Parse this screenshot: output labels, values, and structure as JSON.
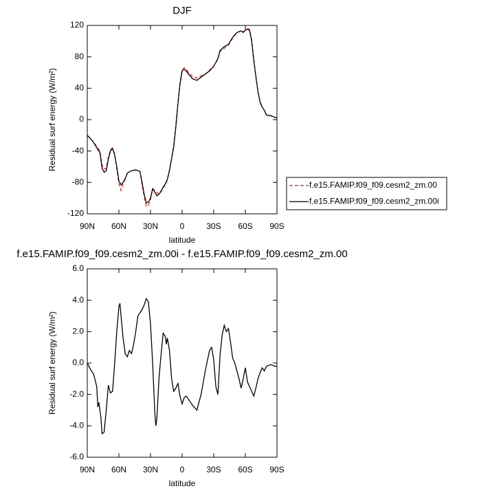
{
  "chart_data": [
    {
      "type": "line",
      "title": "DJF",
      "xlabel": "latitude",
      "ylabel": "Residual surf energy (W/m²)",
      "x": [
        90,
        85,
        80,
        78,
        76,
        74,
        72,
        70,
        68,
        66,
        64,
        62,
        60,
        58,
        56,
        54,
        52,
        48,
        44,
        40,
        38,
        36,
        34,
        32,
        30,
        28,
        26,
        24,
        22,
        20,
        18,
        16,
        14,
        12,
        10,
        8,
        6,
        4,
        2,
        0,
        -2,
        -4,
        -6,
        -10,
        -14,
        -18,
        -22,
        -26,
        -30,
        -34,
        -36,
        -40,
        -44,
        -48,
        -52,
        -56,
        -58,
        -60,
        -62,
        -64,
        -66,
        -68,
        -70,
        -72,
        -74,
        -76,
        -78,
        -80,
        -84,
        -88,
        -90
      ],
      "series": [
        {
          "name": "f.e15.FAMIP.f09_f09.cesm2_zm.00",
          "color": "#e41a1c",
          "dashed": true,
          "values": [
            -20,
            -27,
            -36,
            -40,
            -58,
            -63,
            -62,
            -48,
            -38,
            -36,
            -44,
            -62,
            -82,
            -90,
            -81,
            -76,
            -68,
            -65,
            -64,
            -66,
            -83,
            -98,
            -110,
            -109,
            -102,
            -88,
            -90,
            -93,
            -95,
            -92,
            -87,
            -83,
            -77,
            -64,
            -49,
            -33,
            -8,
            22,
            47,
            64,
            66,
            64,
            60,
            55,
            53,
            56,
            58,
            63,
            68,
            77,
            87,
            91,
            95,
            104,
            111,
            113,
            112,
            114,
            116,
            115,
            102,
            77,
            56,
            36,
            23,
            16,
            12,
            6,
            5,
            3,
            2
          ]
        },
        {
          "name": "f.e15.FAMIP.f09_f09.cesm2_zm.00i",
          "color": "#000000",
          "dashed": false,
          "values": [
            -20,
            -27,
            -38,
            -42,
            -62,
            -67,
            -65,
            -50,
            -40,
            -37,
            -45,
            -60,
            -78,
            -83,
            -80,
            -75,
            -68,
            -65,
            -64,
            -66,
            -80,
            -95,
            -106,
            -105,
            -100,
            -88,
            -92,
            -97,
            -95,
            -91,
            -86,
            -82,
            -76,
            -65,
            -50,
            -35,
            -10,
            20,
            45,
            62,
            64,
            62,
            58,
            52,
            50,
            54,
            58,
            62,
            68,
            78,
            88,
            93,
            96,
            105,
            111,
            113,
            111,
            114,
            115,
            114,
            100,
            75,
            55,
            35,
            22,
            16,
            12,
            6,
            5,
            3,
            2
          ]
        }
      ],
      "xlim": [
        90,
        -90
      ],
      "xticks": [
        {
          "value": 90,
          "label": "90N"
        },
        {
          "value": 60,
          "label": "60N"
        },
        {
          "value": 30,
          "label": "30N"
        },
        0,
        {
          "value": -30,
          "label": "30S"
        },
        {
          "value": -60,
          "label": "60S"
        },
        {
          "value": -90,
          "label": "90S"
        }
      ],
      "ylim": [
        -120,
        120
      ],
      "yticks": [
        120,
        80,
        40,
        0,
        -40,
        -80,
        -120
      ]
    },
    {
      "type": "line",
      "title": "f.e15.FAMIP.f09_f09.cesm2_zm.00i - f.e15.FAMIP.f09_f09.cesm2_zm.00",
      "xlabel": "latitude",
      "ylabel": "Residual surf energy (W/m²)",
      "x": [
        90,
        87,
        84,
        81,
        80,
        79,
        77,
        76,
        74,
        72,
        70,
        68,
        66,
        64,
        62,
        60,
        59,
        58,
        56,
        54,
        52,
        50,
        48,
        46,
        44,
        42,
        38,
        36,
        34,
        32,
        30,
        28,
        26,
        25,
        24,
        22,
        20,
        18,
        16,
        15,
        14,
        12,
        10,
        8,
        6,
        4,
        2,
        0,
        -2,
        -4,
        -6,
        -10,
        -14,
        -16,
        -18,
        -22,
        -26,
        -28,
        -30,
        -32,
        -34,
        -36,
        -38,
        -40,
        -42,
        -44,
        -46,
        -48,
        -50,
        -52,
        -54,
        -56,
        -58,
        -60,
        -62,
        -64,
        -66,
        -68,
        -70,
        -72,
        -74,
        -76,
        -78,
        -80,
        -84,
        -88,
        -90
      ],
      "series": [
        {
          "color": "#000000",
          "dashed": false,
          "values": [
            0,
            -0.4,
            -0.7,
            -1.5,
            -2.8,
            -2.5,
            -3.5,
            -4.5,
            -4.4,
            -3.0,
            -1.4,
            -1.9,
            -1.8,
            0,
            2.0,
            3.6,
            3.8,
            3.0,
            1.6,
            0.6,
            0.4,
            0.8,
            0.6,
            1.2,
            2.0,
            3.0,
            3.4,
            3.7,
            4.1,
            3.9,
            2.5,
            0,
            -3.0,
            -4.0,
            -3.6,
            -1.0,
            0.5,
            1.9,
            1.7,
            1.2,
            1.6,
            0.8,
            -1.0,
            -1.8,
            -1.6,
            -1.3,
            -2.1,
            -2.6,
            -2.2,
            -2.1,
            -2.3,
            -2.7,
            -3.0,
            -2.5,
            -2.0,
            -0.5,
            0.8,
            1.0,
            0.2,
            -1.5,
            -2.0,
            0.5,
            1.8,
            2.4,
            2.0,
            2.2,
            1.3,
            0.3,
            0,
            -0.5,
            -1.0,
            -1.6,
            -1.0,
            -0.3,
            -1.2,
            -1.5,
            -1.8,
            -2.1,
            -1.6,
            -1.0,
            -0.6,
            -0.3,
            -0.5,
            -0.2,
            -0.1,
            -0.2,
            -0.2
          ]
        }
      ],
      "xlim": [
        90,
        -90
      ],
      "xticks": [
        {
          "value": 90,
          "label": "90N"
        },
        {
          "value": 60,
          "label": "60N"
        },
        {
          "value": 30,
          "label": "30N"
        },
        0,
        {
          "value": -30,
          "label": "30S"
        },
        {
          "value": -60,
          "label": "60S"
        },
        {
          "value": -90,
          "label": "90S"
        }
      ],
      "ylim": [
        -6,
        6
      ],
      "yticks": [
        {
          "value": 6,
          "label": "6.0"
        },
        {
          "value": 4,
          "label": "4.0"
        },
        {
          "value": 2,
          "label": "2.0"
        },
        {
          "value": 0,
          "label": "0.0"
        },
        {
          "value": -2,
          "label": "-2.0"
        },
        {
          "value": -4,
          "label": "-4.0"
        },
        {
          "value": -6,
          "label": "-6.0"
        }
      ]
    }
  ]
}
